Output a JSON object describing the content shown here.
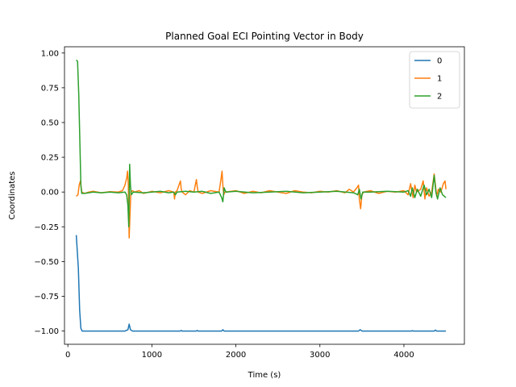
{
  "chart_data": {
    "type": "line",
    "title": "Planned Goal ECI Pointing Vector in Body",
    "xlabel": "Time (s)",
    "ylabel": "Coordinates",
    "xlim": [
      -40,
      4720
    ],
    "ylim": [
      -1.095,
      1.045
    ],
    "xticks": [
      0,
      1000,
      2000,
      3000,
      4000
    ],
    "xtick_labels": [
      "0",
      "1000",
      "2000",
      "3000",
      "4000"
    ],
    "yticks": [
      -1.0,
      -0.75,
      -0.5,
      -0.25,
      0.0,
      0.25,
      0.5,
      0.75,
      1.0
    ],
    "ytick_labels": [
      "−1.00",
      "−0.75",
      "−0.50",
      "−0.25",
      "0.00",
      "0.25",
      "0.50",
      "0.75",
      "1.00"
    ],
    "grid": false,
    "legend_position": "top-right",
    "series": [
      {
        "name": "0",
        "color": "#1f77b4",
        "points": [
          [
            100,
            -0.31
          ],
          [
            125,
            -0.55
          ],
          [
            140,
            -0.85
          ],
          [
            155,
            -0.98
          ],
          [
            170,
            -1.0
          ],
          [
            400,
            -1.0
          ],
          [
            680,
            -1.0
          ],
          [
            715,
            -0.99
          ],
          [
            730,
            -0.95
          ],
          [
            745,
            -0.99
          ],
          [
            770,
            -1.0
          ],
          [
            1340,
            -1.0
          ],
          [
            1350,
            -0.995
          ],
          [
            1360,
            -1.0
          ],
          [
            1530,
            -1.0
          ],
          [
            1540,
            -0.995
          ],
          [
            1550,
            -1.0
          ],
          [
            1830,
            -1.0
          ],
          [
            1845,
            -0.99
          ],
          [
            1860,
            -1.0
          ],
          [
            3460,
            -1.0
          ],
          [
            3480,
            -0.99
          ],
          [
            3500,
            -1.0
          ],
          [
            4090,
            -1.0
          ],
          [
            4100,
            -0.997
          ],
          [
            4110,
            -1.0
          ],
          [
            4360,
            -1.0
          ],
          [
            4375,
            -0.993
          ],
          [
            4390,
            -1.0
          ],
          [
            4500,
            -1.0
          ]
        ]
      },
      {
        "name": "1",
        "color": "#ff7f0e",
        "points": [
          [
            100,
            -0.03
          ],
          [
            120,
            -0.02
          ],
          [
            135,
            0.05
          ],
          [
            150,
            0.08
          ],
          [
            165,
            0.0
          ],
          [
            200,
            -0.01
          ],
          [
            250,
            0.0
          ],
          [
            300,
            0.005
          ],
          [
            400,
            -0.005
          ],
          [
            500,
            0.003
          ],
          [
            600,
            0.0
          ],
          [
            650,
            0.01
          ],
          [
            680,
            0.05
          ],
          [
            700,
            0.1
          ],
          [
            710,
            0.15
          ],
          [
            720,
            0.05
          ],
          [
            730,
            -0.33
          ],
          [
            740,
            -0.15
          ],
          [
            750,
            0.0
          ],
          [
            770,
            0.01
          ],
          [
            790,
            0.0
          ],
          [
            850,
            0.01
          ],
          [
            900,
            -0.01
          ],
          [
            1000,
            0.005
          ],
          [
            1100,
            -0.005
          ],
          [
            1200,
            0.01
          ],
          [
            1260,
            0.0
          ],
          [
            1270,
            -0.05
          ],
          [
            1280,
            0.0
          ],
          [
            1300,
            0.01
          ],
          [
            1340,
            0.08
          ],
          [
            1350,
            0.02
          ],
          [
            1360,
            0.0
          ],
          [
            1400,
            -0.02
          ],
          [
            1450,
            0.01
          ],
          [
            1500,
            0.0
          ],
          [
            1530,
            0.09
          ],
          [
            1540,
            0.04
          ],
          [
            1550,
            0.0
          ],
          [
            1600,
            -0.01
          ],
          [
            1700,
            0.01
          ],
          [
            1800,
            0.0
          ],
          [
            1825,
            0.1
          ],
          [
            1835,
            0.15
          ],
          [
            1845,
            0.05
          ],
          [
            1855,
            -0.02
          ],
          [
            1870,
            0.0
          ],
          [
            2000,
            0.01
          ],
          [
            2100,
            -0.01
          ],
          [
            2200,
            0.005
          ],
          [
            2300,
            -0.005
          ],
          [
            2400,
            0.01
          ],
          [
            2500,
            0.0
          ],
          [
            2600,
            -0.01
          ],
          [
            2700,
            0.01
          ],
          [
            2800,
            0.0
          ],
          [
            2900,
            -0.005
          ],
          [
            3000,
            0.005
          ],
          [
            3100,
            0.0
          ],
          [
            3200,
            0.01
          ],
          [
            3300,
            -0.005
          ],
          [
            3350,
            0.02
          ],
          [
            3400,
            0.0
          ],
          [
            3440,
            0.03
          ],
          [
            3460,
            0.05
          ],
          [
            3470,
            -0.05
          ],
          [
            3485,
            -0.12
          ],
          [
            3500,
            -0.02
          ],
          [
            3520,
            0.0
          ],
          [
            3600,
            0.01
          ],
          [
            3700,
            -0.01
          ],
          [
            3800,
            0.005
          ],
          [
            3900,
            0.0
          ],
          [
            4000,
            0.01
          ],
          [
            4050,
            -0.02
          ],
          [
            4080,
            0.06
          ],
          [
            4090,
            0.02
          ],
          [
            4110,
            -0.04
          ],
          [
            4130,
            0.05
          ],
          [
            4150,
            0.0
          ],
          [
            4200,
            0.02
          ],
          [
            4230,
            0.08
          ],
          [
            4250,
            -0.05
          ],
          [
            4270,
            0.03
          ],
          [
            4300,
            -0.03
          ],
          [
            4330,
            0.0
          ],
          [
            4360,
            0.13
          ],
          [
            4375,
            0.05
          ],
          [
            4390,
            -0.03
          ],
          [
            4410,
            0.02
          ],
          [
            4440,
            0.0
          ],
          [
            4470,
            0.06
          ],
          [
            4490,
            0.08
          ],
          [
            4500,
            0.02
          ]
        ]
      },
      {
        "name": "2",
        "color": "#2ca02c",
        "points": [
          [
            100,
            0.95
          ],
          [
            115,
            0.94
          ],
          [
            130,
            0.7
          ],
          [
            145,
            0.3
          ],
          [
            155,
            0.05
          ],
          [
            165,
            -0.01
          ],
          [
            200,
            -0.01
          ],
          [
            300,
            0.0
          ],
          [
            400,
            -0.005
          ],
          [
            500,
            0.0
          ],
          [
            600,
            -0.005
          ],
          [
            680,
            0.0
          ],
          [
            700,
            -0.02
          ],
          [
            715,
            -0.1
          ],
          [
            725,
            -0.25
          ],
          [
            735,
            0.2
          ],
          [
            745,
            0.05
          ],
          [
            755,
            -0.02
          ],
          [
            780,
            0.0
          ],
          [
            900,
            -0.005
          ],
          [
            1000,
            0.0
          ],
          [
            1100,
            0.005
          ],
          [
            1200,
            -0.005
          ],
          [
            1260,
            0.0
          ],
          [
            1280,
            -0.02
          ],
          [
            1300,
            0.0
          ],
          [
            1400,
            0.005
          ],
          [
            1500,
            0.0
          ],
          [
            1600,
            0.005
          ],
          [
            1700,
            -0.01
          ],
          [
            1800,
            0.0
          ],
          [
            1830,
            -0.04
          ],
          [
            1845,
            -0.07
          ],
          [
            1860,
            0.03
          ],
          [
            1880,
            0.0
          ],
          [
            2000,
            0.005
          ],
          [
            2200,
            -0.005
          ],
          [
            2400,
            0.0
          ],
          [
            2600,
            0.005
          ],
          [
            2800,
            -0.005
          ],
          [
            3000,
            0.0
          ],
          [
            3200,
            0.005
          ],
          [
            3400,
            -0.005
          ],
          [
            3450,
            -0.02
          ],
          [
            3470,
            0.02
          ],
          [
            3490,
            -0.05
          ],
          [
            3510,
            0.0
          ],
          [
            3600,
            0.0
          ],
          [
            3800,
            0.005
          ],
          [
            4000,
            0.0
          ],
          [
            4050,
            0.01
          ],
          [
            4080,
            -0.03
          ],
          [
            4100,
            0.03
          ],
          [
            4130,
            -0.04
          ],
          [
            4160,
            0.02
          ],
          [
            4200,
            -0.03
          ],
          [
            4240,
            0.05
          ],
          [
            4270,
            -0.02
          ],
          [
            4300,
            0.02
          ],
          [
            4330,
            -0.04
          ],
          [
            4360,
            0.12
          ],
          [
            4380,
            0.0
          ],
          [
            4400,
            -0.05
          ],
          [
            4430,
            0.03
          ],
          [
            4460,
            -0.02
          ],
          [
            4500,
            -0.04
          ]
        ]
      }
    ]
  }
}
